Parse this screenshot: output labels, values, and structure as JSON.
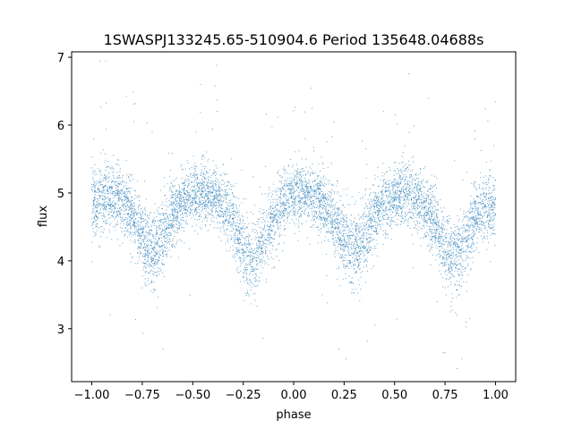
{
  "chart_data": {
    "type": "scatter",
    "title": "1SWASPJ133245.65-510904.6 Period 135648.04688s",
    "xlabel": "phase",
    "ylabel": "flux",
    "xlim": [
      -1.1,
      1.1
    ],
    "ylim": [
      2.22,
      7.08
    ],
    "x_ticks": [
      -1.0,
      -0.75,
      -0.5,
      -0.25,
      0.0,
      0.25,
      0.5,
      0.75,
      1.0
    ],
    "x_tick_labels": [
      "−1.00",
      "−0.75",
      "−0.50",
      "−0.25",
      "0.00",
      "0.25",
      "0.50",
      "0.75",
      "1.00"
    ],
    "y_ticks": [
      3,
      4,
      5,
      6,
      7
    ],
    "y_tick_labels": [
      "3",
      "4",
      "5",
      "6",
      "7"
    ],
    "grid": false,
    "color": "#1f77b4",
    "series": [
      {
        "x": [
          -1.0,
          -0.95,
          -0.9,
          -0.85,
          -0.8,
          -0.75,
          -0.7,
          -0.65,
          -0.6,
          -0.55,
          -0.5,
          -0.45,
          -0.4,
          -0.35,
          -0.3,
          -0.25,
          -0.2,
          -0.15,
          -0.1,
          -0.05,
          0.0,
          0.05,
          0.1,
          0.15,
          0.2,
          0.25,
          0.3,
          0.35,
          0.4,
          0.45,
          0.5,
          0.55,
          0.6,
          0.65,
          0.7,
          0.75,
          0.8,
          0.85,
          0.9,
          0.95,
          1.0
        ],
        "y": [
          4.82,
          4.95,
          4.98,
          4.9,
          4.7,
          4.35,
          4.12,
          4.35,
          4.7,
          4.88,
          4.95,
          5.0,
          4.98,
          4.85,
          4.6,
          4.2,
          3.95,
          4.3,
          4.65,
          4.88,
          4.98,
          5.02,
          4.97,
          4.85,
          4.6,
          4.3,
          4.12,
          4.35,
          4.68,
          4.88,
          4.95,
          5.0,
          4.95,
          4.82,
          4.55,
          4.2,
          3.98,
          4.3,
          4.65,
          4.8,
          4.82
        ],
        "y_spread": [
          0.35,
          0.35,
          0.33,
          0.32,
          0.33,
          0.35,
          0.38,
          0.35,
          0.32,
          0.3,
          0.3,
          0.3,
          0.3,
          0.31,
          0.33,
          0.37,
          0.4,
          0.37,
          0.33,
          0.31,
          0.3,
          0.3,
          0.3,
          0.31,
          0.33,
          0.35,
          0.38,
          0.35,
          0.32,
          0.3,
          0.3,
          0.3,
          0.31,
          0.32,
          0.34,
          0.37,
          0.4,
          0.37,
          0.33,
          0.33,
          0.35
        ]
      }
    ]
  }
}
